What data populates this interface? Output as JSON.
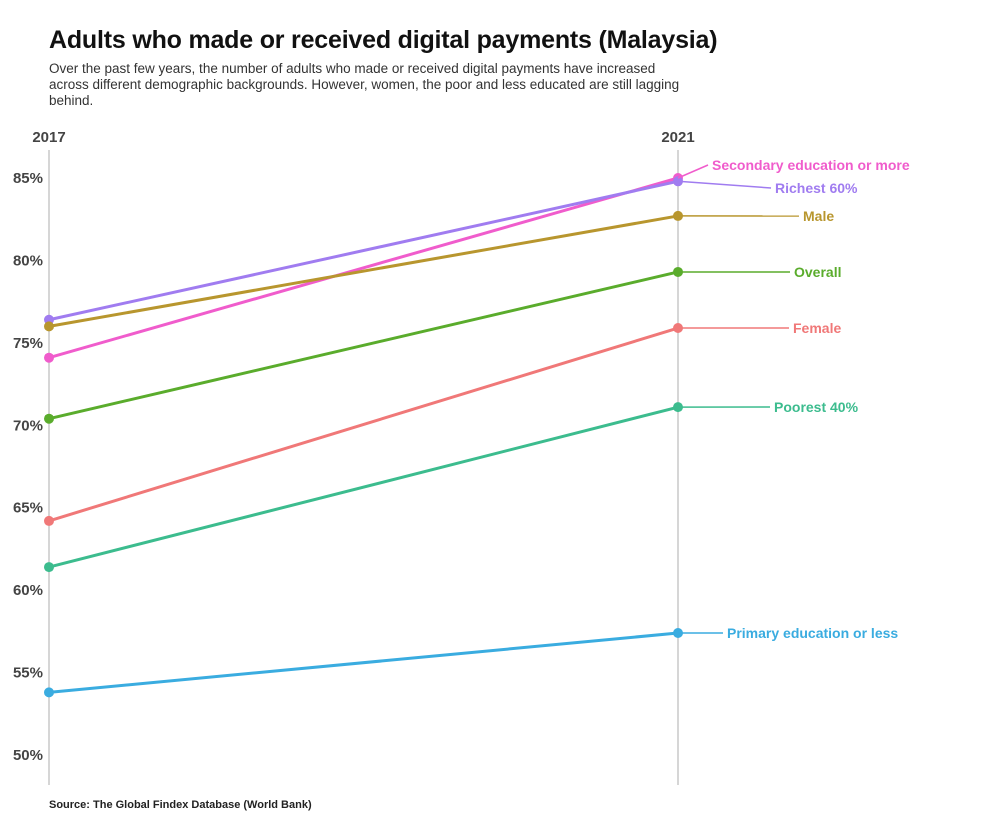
{
  "title": "Adults who made or received digital payments (Malaysia)",
  "subtitle": "Over the past few years, the number of adults who made or received digital payments have increased across different demographic backgrounds. However, women, the poor and less educated are still lagging behind.",
  "source": "Source: The Global Findex Database (World Bank)",
  "chart_data": {
    "type": "line",
    "x": [
      "2017",
      "2021"
    ],
    "ylim": [
      50,
      85
    ],
    "yticks": [
      85,
      80,
      75,
      70,
      65,
      60,
      55,
      50
    ],
    "ytick_labels": [
      "85%",
      "80%",
      "75%",
      "70%",
      "65%",
      "60%",
      "55%",
      "50%"
    ],
    "grid": "vertical lines at each year",
    "legend": "direct labels at right end of each line",
    "series": [
      {
        "name": "Secondary education or more",
        "values": [
          74.1,
          85.0
        ],
        "color": "#f05ccc"
      },
      {
        "name": "Richest 60%",
        "values": [
          76.4,
          84.8
        ],
        "color": "#a07cf0"
      },
      {
        "name": "Male",
        "values": [
          76.0,
          82.7
        ],
        "color": "#b8962e"
      },
      {
        "name": "Overall",
        "values": [
          70.4,
          79.3
        ],
        "color": "#5aac2c"
      },
      {
        "name": "Female",
        "values": [
          64.2,
          75.9
        ],
        "color": "#f07878"
      },
      {
        "name": "Poorest 40%",
        "values": [
          61.4,
          71.1
        ],
        "color": "#3cbc8e"
      },
      {
        "name": "Primary education or less",
        "values": [
          53.8,
          57.4
        ],
        "color": "#3aace0"
      }
    ]
  }
}
